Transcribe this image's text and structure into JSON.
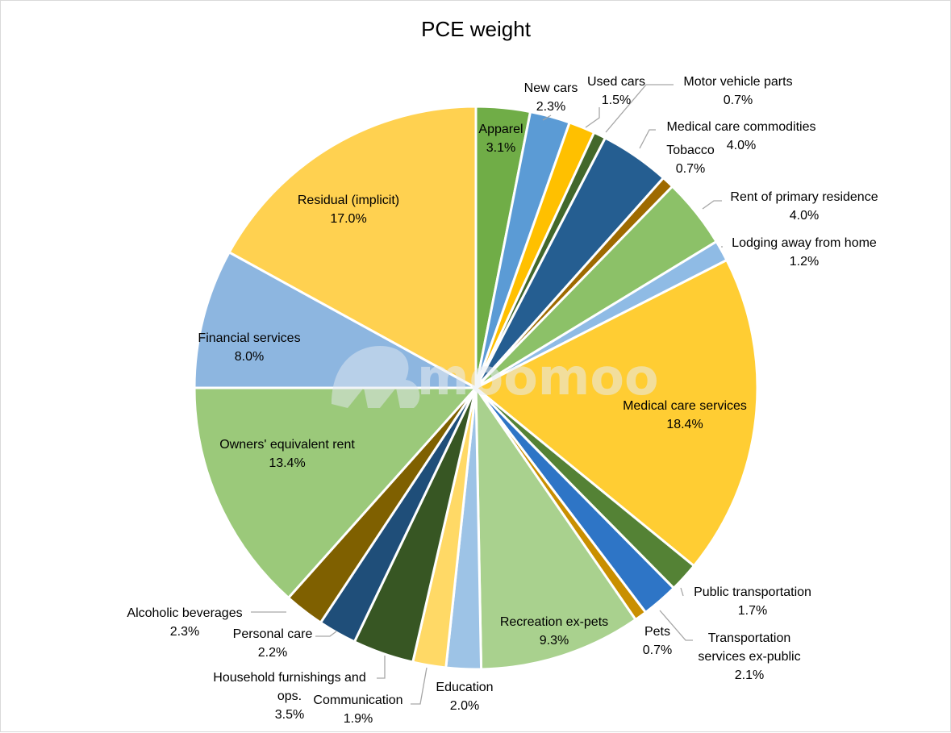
{
  "chart_data": {
    "type": "pie",
    "title": "PCE weight",
    "watermark": "moomoo",
    "unit": "%",
    "slices": [
      {
        "label": "Apparel",
        "value": 3.1,
        "display": "3.1%",
        "color": "#70ad47"
      },
      {
        "label": "New cars",
        "value": 2.3,
        "display": "2.3%",
        "color": "#5b9bd5"
      },
      {
        "label": "Used cars",
        "value": 1.5,
        "display": "1.5%",
        "color": "#ffc000"
      },
      {
        "label": "Motor vehicle parts",
        "value": 0.7,
        "display": "0.7%",
        "color": "#43682b"
      },
      {
        "label": "Medical care commodities",
        "value": 4.0,
        "display": "4.0%",
        "color": "#255e91"
      },
      {
        "label": "Tobacco",
        "value": 0.7,
        "display": "0.7%",
        "color": "#9e6a00"
      },
      {
        "label": "Rent of primary residence",
        "value": 4.0,
        "display": "4.0%",
        "color": "#8cc168"
      },
      {
        "label": "Lodging away from home",
        "value": 1.2,
        "display": "1.2%",
        "color": "#8fbbe5"
      },
      {
        "label": "Medical care services",
        "value": 18.4,
        "display": "18.4%",
        "color": "#ffcd33"
      },
      {
        "label": "Public transportation",
        "value": 1.7,
        "display": "1.7%",
        "color": "#548235"
      },
      {
        "label": "Transportation services ex-public",
        "value": 2.1,
        "display": "2.1%",
        "color": "#2e75c6"
      },
      {
        "label": "Pets",
        "value": 0.7,
        "display": "0.7%",
        "color": "#c98f00"
      },
      {
        "label": "Recreation ex-pets",
        "value": 9.3,
        "display": "9.3%",
        "color": "#a9d18e"
      },
      {
        "label": "Education",
        "value": 2.0,
        "display": "2.0%",
        "color": "#9dc3e6"
      },
      {
        "label": "Communication",
        "value": 1.9,
        "display": "1.9%",
        "color": "#ffd966"
      },
      {
        "label": "Household furnishings and ops.",
        "value": 3.5,
        "display": "3.5%",
        "color": "#375623"
      },
      {
        "label": "Personal care",
        "value": 2.2,
        "display": "2.2%",
        "color": "#1f4e79"
      },
      {
        "label": "Alcoholic beverages",
        "value": 2.3,
        "display": "2.3%",
        "color": "#7f6000"
      },
      {
        "label": "Owners' equivalent rent",
        "value": 13.4,
        "display": "13.4%",
        "color": "#9bc97a"
      },
      {
        "label": "Financial services",
        "value": 8.0,
        "display": "8.0%",
        "color": "#8db6e0"
      },
      {
        "label": "Residual (implicit)",
        "value": 17.0,
        "display": "17.0%",
        "color": "#ffd150"
      }
    ]
  }
}
